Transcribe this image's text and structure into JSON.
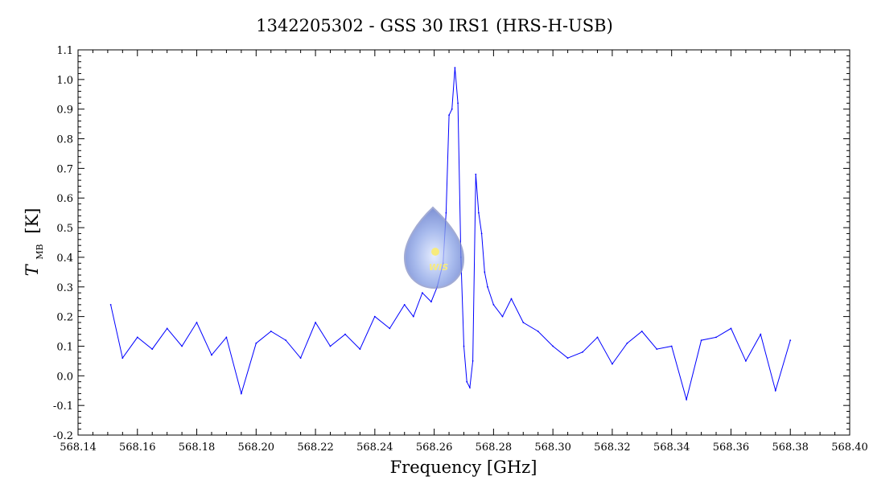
{
  "chart_data": {
    "type": "line",
    "title": "1342205302 - GSS 30 IRS1 (HRS-H-USB)",
    "xlabel": "Frequency [GHz]",
    "ylabel_main": "T",
    "ylabel_sub": "MB",
    "ylabel_unit": "[K]",
    "xlim": [
      568.14,
      568.4
    ],
    "ylim": [
      -0.2,
      1.1
    ],
    "x_ticks": [
      568.14,
      568.16,
      568.18,
      568.2,
      568.22,
      568.24,
      568.26,
      568.28,
      568.3,
      568.32,
      568.34,
      568.36,
      568.38,
      568.4
    ],
    "x_tick_labels": [
      "568.14",
      "568.16",
      "568.18",
      "568.20",
      "568.22",
      "568.24",
      "568.26",
      "568.28",
      "568.30",
      "568.32",
      "568.34",
      "568.36",
      "568.38",
      "568.40"
    ],
    "y_ticks": [
      -0.2,
      -0.1,
      0.0,
      0.1,
      0.2,
      0.3,
      0.4,
      0.5,
      0.6,
      0.7,
      0.8,
      0.9,
      1.0,
      1.1
    ],
    "y_tick_labels": [
      "-0.2",
      "-0.1",
      "0.0",
      "0.1",
      "0.2",
      "0.3",
      "0.4",
      "0.5",
      "0.6",
      "0.7",
      "0.8",
      "0.9",
      "1.0",
      "1.1"
    ],
    "grid": false,
    "series": [
      {
        "color": "#0000ff",
        "x": [
          568.151,
          568.155,
          568.16,
          568.165,
          568.17,
          568.175,
          568.18,
          568.185,
          568.19,
          568.195,
          568.2,
          568.205,
          568.21,
          568.215,
          568.22,
          568.225,
          568.23,
          568.235,
          568.24,
          568.245,
          568.25,
          568.253,
          568.256,
          568.259,
          568.261,
          568.263,
          568.264,
          568.265,
          568.266,
          568.267,
          568.268,
          568.269,
          568.27,
          568.271,
          568.272,
          568.273,
          568.274,
          568.275,
          568.276,
          568.277,
          568.278,
          568.28,
          568.283,
          568.286,
          568.29,
          568.295,
          568.3,
          568.305,
          568.31,
          568.315,
          568.32,
          568.325,
          568.33,
          568.335,
          568.34,
          568.345,
          568.35,
          568.355,
          568.36,
          568.365,
          568.37,
          568.375,
          568.38
        ],
        "values": [
          0.24,
          0.06,
          0.13,
          0.09,
          0.16,
          0.1,
          0.18,
          0.07,
          0.13,
          -0.06,
          0.11,
          0.15,
          0.12,
          0.06,
          0.18,
          0.1,
          0.14,
          0.09,
          0.2,
          0.16,
          0.24,
          0.2,
          0.28,
          0.25,
          0.3,
          0.38,
          0.55,
          0.88,
          0.9,
          1.04,
          0.92,
          0.4,
          0.1,
          -0.02,
          -0.04,
          0.05,
          0.68,
          0.55,
          0.48,
          0.35,
          0.3,
          0.24,
          0.2,
          0.26,
          0.18,
          0.15,
          0.1,
          0.06,
          0.08,
          0.13,
          0.04,
          0.11,
          0.15,
          0.09,
          0.1,
          -0.08,
          0.12,
          0.13,
          0.16,
          0.05,
          0.14,
          -0.05,
          0.12
        ]
      }
    ]
  }
}
